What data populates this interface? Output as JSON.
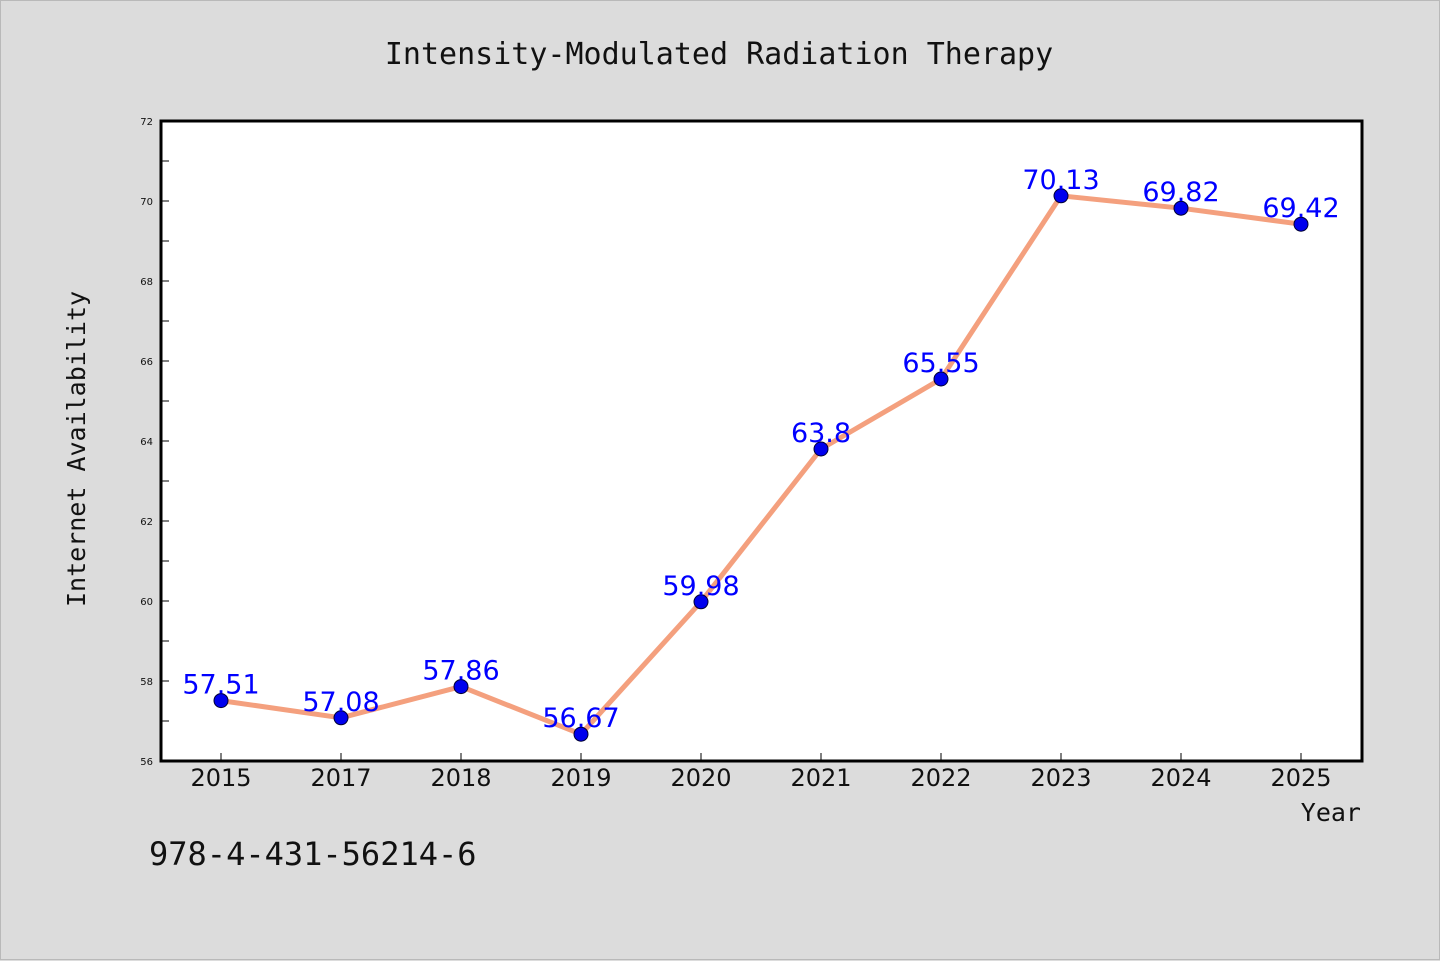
{
  "chart_data": {
    "type": "line",
    "title": "Intensity-Modulated Radiation Therapy",
    "xlabel": "Year",
    "ylabel": "Internet Availability",
    "categories": [
      "2015",
      "2017",
      "2018",
      "2019",
      "2020",
      "2021",
      "2022",
      "2023",
      "2024",
      "2025"
    ],
    "series": [
      {
        "values": [
          57.51,
          57.08,
          57.86,
          56.67,
          59.98,
          63.8,
          65.55,
          70.13,
          69.82,
          69.42
        ],
        "labels": [
          "57.51",
          "57.08",
          "57.86",
          "56.67",
          "59.98",
          "63.8",
          "65.55",
          "70.13",
          "69.82",
          "69.42"
        ]
      }
    ],
    "ylim": [
      56,
      72
    ],
    "yticks": [
      "56",
      "58",
      "60",
      "62",
      "64",
      "66",
      "68",
      "70",
      "72"
    ],
    "grid": false,
    "legend": "none",
    "line_color": "#f4a07e",
    "marker_color": "#0000ee",
    "label_color": "#0000ff"
  },
  "annotation": "978-4-431-56214-6"
}
